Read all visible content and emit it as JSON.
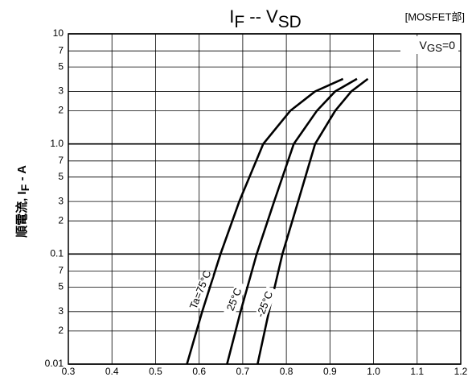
{
  "chart_data": {
    "type": "line",
    "title": [
      {
        "text": "I"
      },
      {
        "sub": "F"
      },
      {
        "text": " -- V"
      },
      {
        "sub": "SD"
      }
    ],
    "subtitle": "[MOSFET部]",
    "ylabel": [
      {
        "text": "順電流, I"
      },
      {
        "sub": "F"
      },
      {
        "text": " - A"
      }
    ],
    "condition": [
      {
        "text": "V"
      },
      {
        "sub": "GS"
      },
      {
        "text": "=0"
      }
    ],
    "xlim": [
      0.3,
      1.2
    ],
    "xticks": [
      0.3,
      0.4,
      0.5,
      0.6,
      0.7,
      0.8,
      0.9,
      {
        "value": 1,
        "label": "1.0"
      },
      1.1,
      1.2
    ],
    "ylim": [
      0.01,
      10
    ],
    "log_y": true,
    "yticks": [
      0.01,
      {
        "value": 0.02,
        "label": "2"
      },
      {
        "value": 0.03,
        "label": "3"
      },
      {
        "value": 0.05,
        "label": "5"
      },
      {
        "value": 0.07,
        "label": "7"
      },
      0.1,
      {
        "value": 0.2,
        "label": "2"
      },
      {
        "value": 0.3,
        "label": "3"
      },
      {
        "value": 0.5,
        "label": "5"
      },
      {
        "value": 0.7,
        "label": "7"
      },
      {
        "value": 1,
        "label": "1.0"
      },
      {
        "value": 2,
        "label": "2"
      },
      {
        "value": 3,
        "label": "3"
      },
      {
        "value": 5,
        "label": "5"
      },
      {
        "value": 7,
        "label": "7"
      },
      10
    ],
    "grid": true,
    "series": [
      {
        "name": "Ta=75°C",
        "color": "#000000",
        "x": [
          0.572,
          0.607,
          0.649,
          0.692,
          0.747,
          0.809,
          0.866,
          0.93
        ],
        "values": [
          0.01,
          0.03,
          0.1,
          0.3,
          1,
          2,
          3,
          3.9
        ]
      },
      {
        "name": "25°C",
        "color": "#000000",
        "x": [
          0.664,
          0.695,
          0.732,
          0.772,
          0.817,
          0.87,
          0.912,
          0.962
        ],
        "values": [
          0.01,
          0.03,
          0.1,
          0.3,
          1,
          2,
          3,
          3.9
        ]
      },
      {
        "name": "-25°C",
        "color": "#000000",
        "x": [
          0.734,
          0.76,
          0.791,
          0.827,
          0.866,
          0.912,
          0.949,
          0.987
        ],
        "values": [
          0.01,
          0.03,
          0.1,
          0.3,
          1,
          2,
          3,
          3.9
        ]
      }
    ]
  }
}
